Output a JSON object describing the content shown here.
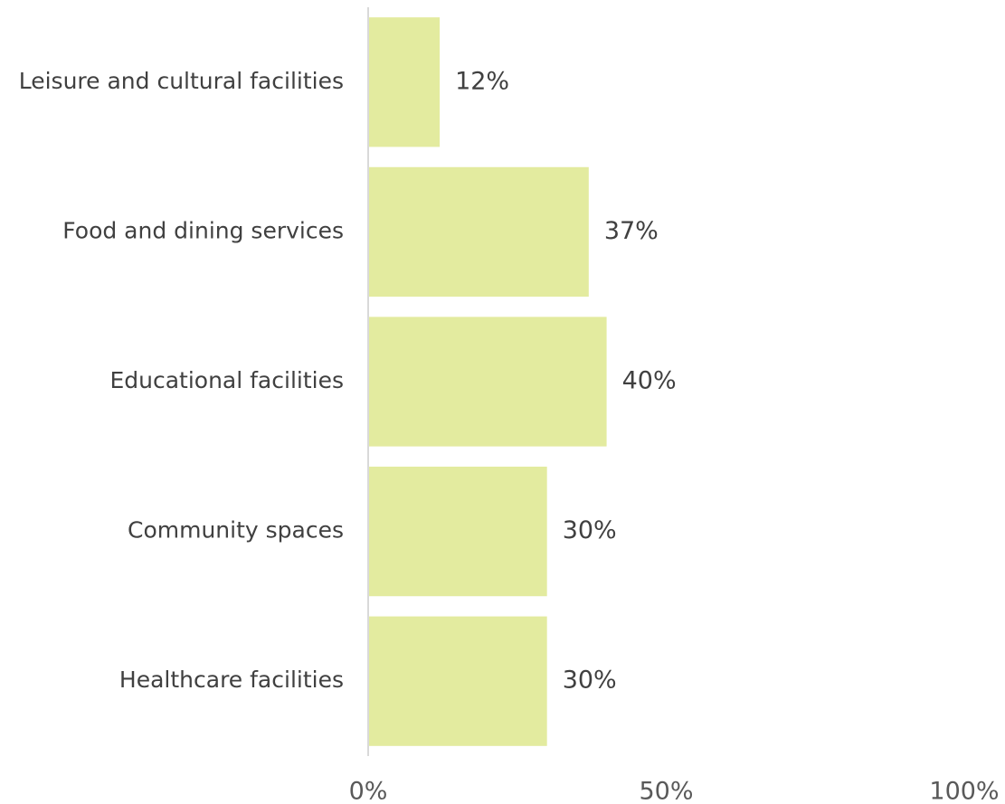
{
  "chart_data": {
    "type": "bar",
    "orientation": "horizontal",
    "categories": [
      "Leisure and cultural facilities",
      "Food and dining services",
      "Educational facilities",
      "Community spaces",
      "Healthcare facilities"
    ],
    "values": [
      12,
      37,
      40,
      30,
      30
    ],
    "value_labels": [
      "12%",
      "37%",
      "40%",
      "30%",
      "30%"
    ],
    "xlim": [
      0,
      100
    ],
    "x_ticks": [
      0,
      50,
      100
    ],
    "x_tick_labels": [
      "0%",
      "50%",
      "100%"
    ],
    "grid": false,
    "legend": "none",
    "bar_color": "#e3eb9f",
    "axis_color": "#d9d9d9",
    "text_color": "#404040"
  }
}
